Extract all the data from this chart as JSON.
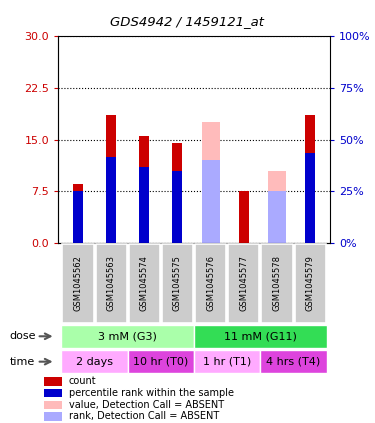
{
  "title": "GDS4942 / 1459121_at",
  "samples": [
    "GSM1045562",
    "GSM1045563",
    "GSM1045574",
    "GSM1045575",
    "GSM1045576",
    "GSM1045577",
    "GSM1045578",
    "GSM1045579"
  ],
  "red_bars": [
    8.5,
    18.5,
    15.5,
    14.5,
    0,
    7.5,
    0,
    18.5
  ],
  "blue_bars": [
    7.5,
    12.5,
    11.0,
    10.5,
    0,
    0,
    0,
    13.0
  ],
  "pink_bars": [
    0,
    0,
    0,
    0,
    17.5,
    0,
    10.5,
    0
  ],
  "lightblue_bars": [
    0,
    0,
    0,
    0,
    12.0,
    0,
    7.5,
    0
  ],
  "ylim_left": [
    0,
    30
  ],
  "ylim_right": [
    0,
    100
  ],
  "yticks_left": [
    0,
    7.5,
    15,
    22.5,
    30
  ],
  "yticks_right": [
    0,
    25,
    50,
    75,
    100
  ],
  "dose_groups": [
    {
      "label": "3 mM (G3)",
      "start": 0,
      "end": 4,
      "color": "#aaffaa"
    },
    {
      "label": "11 mM (G11)",
      "start": 4,
      "end": 8,
      "color": "#33dd55"
    }
  ],
  "time_groups": [
    {
      "label": "2 days",
      "start": 0,
      "end": 2,
      "color": "#ffaaff"
    },
    {
      "label": "10 hr (T0)",
      "start": 2,
      "end": 4,
      "color": "#dd44dd"
    },
    {
      "label": "1 hr (T1)",
      "start": 4,
      "end": 6,
      "color": "#ffaaff"
    },
    {
      "label": "4 hrs (T4)",
      "start": 6,
      "end": 8,
      "color": "#dd44dd"
    }
  ],
  "legend_items": [
    {
      "label": "count",
      "color": "#cc0000"
    },
    {
      "label": "percentile rank within the sample",
      "color": "#0000cc"
    },
    {
      "label": "value, Detection Call = ABSENT",
      "color": "#ffbbbb"
    },
    {
      "label": "rank, Detection Call = ABSENT",
      "color": "#aaaaff"
    }
  ],
  "bar_width": 0.55,
  "left_tick_color": "#cc0000",
  "right_tick_color": "#0000cc",
  "cell_color": "#cccccc"
}
